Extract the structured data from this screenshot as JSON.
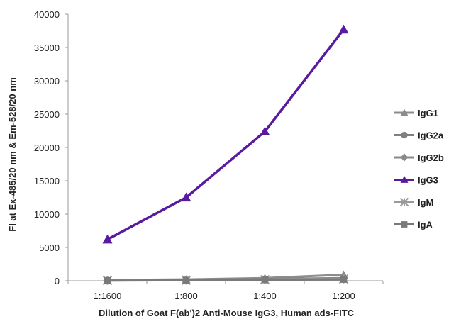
{
  "chart_data": {
    "type": "line",
    "categories": [
      "1:1600",
      "1:800",
      "1:400",
      "1:200"
    ],
    "xlabel": "Dilution of Goat F(ab')2 Anti-Mouse IgG3, Human ads-FITC",
    "ylabel": "FI at Ex-485/20 nm & Em-528/20 nm",
    "ylim": [
      0,
      40000
    ],
    "yticks": [
      0,
      5000,
      10000,
      15000,
      20000,
      25000,
      30000,
      35000,
      40000
    ],
    "grid": false,
    "legend": "right",
    "series": [
      {
        "name": "IgG1",
        "values": [
          100,
          200,
          400,
          900
        ],
        "color": "#8c8c8c",
        "marker": "triangle"
      },
      {
        "name": "IgG2a",
        "values": [
          60,
          120,
          250,
          400
        ],
        "color": "#808080",
        "marker": "circle"
      },
      {
        "name": "IgG2b",
        "values": [
          50,
          100,
          200,
          350
        ],
        "color": "#8a8a8a",
        "marker": "diamond"
      },
      {
        "name": "IgG3",
        "values": [
          6200,
          12500,
          22400,
          37700
        ],
        "color": "#5a1aa0",
        "marker": "triangle"
      },
      {
        "name": "IgM",
        "values": [
          40,
          80,
          150,
          250
        ],
        "color": "#9a9a9a",
        "marker": "star"
      },
      {
        "name": "IgA",
        "values": [
          30,
          70,
          130,
          200
        ],
        "color": "#7a7a7a",
        "marker": "square"
      }
    ]
  }
}
